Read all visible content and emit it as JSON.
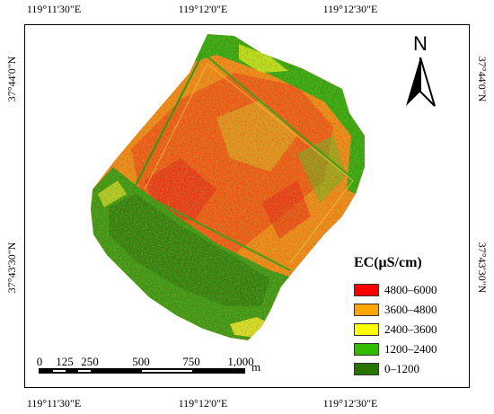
{
  "coordinates": {
    "top": [
      "119°11'30\"E",
      "119°12'0\"E",
      "119°12'30\"E"
    ],
    "bottom": [
      "119°11'30\"E",
      "119°12'0\"E",
      "119°12'30\"E"
    ],
    "left": [
      "37°44'0\"N",
      "37°43'30\"N"
    ],
    "right": [
      "37°44'0\"N",
      "37°43'30\"N"
    ]
  },
  "north_arrow": {
    "label": "N",
    "icon": "north-arrow-icon"
  },
  "legend": {
    "title": "EC(μS/cm)",
    "items": [
      {
        "label": "4800–6000",
        "color": "#ff0000"
      },
      {
        "label": "3600–4800",
        "color": "#ffa500"
      },
      {
        "label": "2400–3600",
        "color": "#ffff00"
      },
      {
        "label": "1200–2400",
        "color": "#33bb00"
      },
      {
        "label": "0–1200",
        "color": "#267300"
      }
    ]
  },
  "scale_bar": {
    "labels": [
      "0",
      "125",
      "250",
      "500",
      "750",
      "1,000"
    ],
    "unit": "m"
  }
}
